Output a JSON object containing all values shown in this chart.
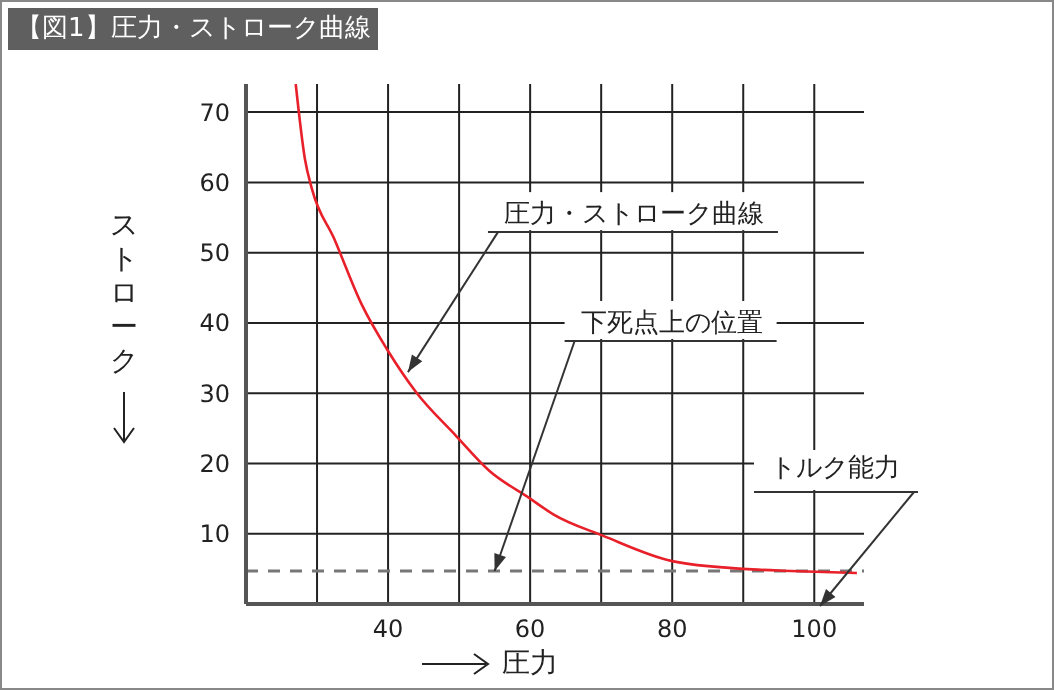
{
  "chart_data": {
    "type": "line",
    "title": "【図1】圧力・ストローク曲線",
    "xlabel": "圧力",
    "ylabel": "ストローク",
    "x": [
      27,
      28.3,
      29.3,
      32.4,
      36.3,
      40,
      43.9,
      49.5,
      54.2,
      60,
      63.2,
      70.3,
      80,
      90,
      96.7,
      106
    ],
    "series": [
      {
        "color": "#e8202a",
        "values": [
          74,
          63.3,
          59,
          52,
          42.6,
          36,
          30.2,
          24,
          19,
          15,
          12.8,
          9.7,
          6.1,
          5,
          4.7,
          4.4
        ]
      }
    ],
    "xlim": [
      20,
      107
    ],
    "xticks": [
      {
        "value": 30,
        "label": null
      },
      40,
      {
        "value": 50,
        "label": null
      },
      60,
      {
        "value": 70,
        "label": null
      },
      80,
      {
        "value": 90,
        "label": null
      },
      100
    ],
    "ylim": [
      0,
      74
    ],
    "yticks": [
      10,
      20,
      30,
      40,
      50,
      60,
      70
    ],
    "grid": true,
    "marker": "none",
    "line_style": "solid",
    "legend": false,
    "ref_lines": [
      {
        "axis": "y",
        "value": 4.7,
        "color": "#777777",
        "line_style": "dashed"
      }
    ],
    "annotations": [
      {
        "text": "圧力・ストローク曲線",
        "x": 42.8,
        "y": 33
      },
      {
        "text": "下死点上の位置",
        "x": 55,
        "y": 4.7
      },
      "トルク能力"
    ]
  }
}
